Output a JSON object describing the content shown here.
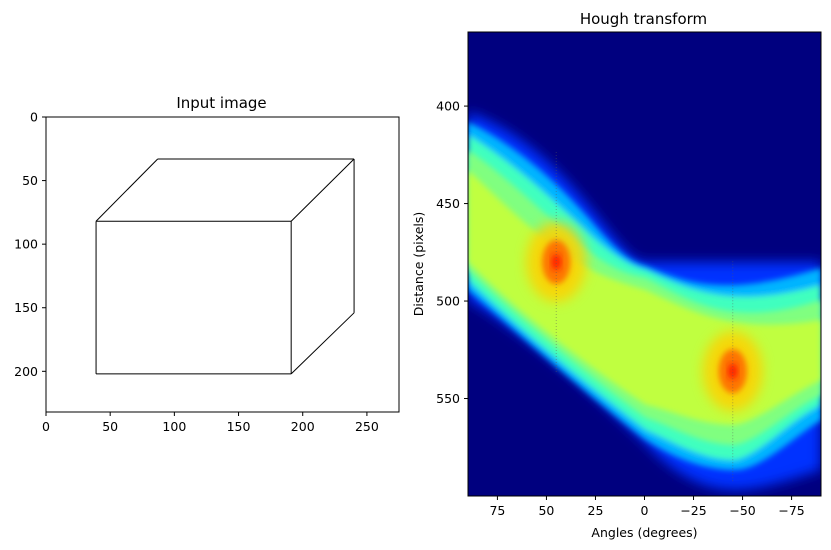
{
  "chart_data": [
    {
      "type": "image",
      "title": "Input image",
      "xlim": [
        0,
        275
      ],
      "ylim": [
        232,
        0
      ],
      "xticks": [
        "0",
        "50",
        "100",
        "150",
        "200",
        "250"
      ],
      "yticks": [
        "0",
        "50",
        "100",
        "150",
        "200"
      ],
      "cube_vertices": {
        "front_top_left": [
          39,
          82
        ],
        "front_top_right": [
          191,
          82
        ],
        "front_bottom_right": [
          191,
          202
        ],
        "front_bottom_left": [
          39,
          202
        ],
        "back_top_left": [
          87,
          33
        ],
        "back_top_right": [
          240,
          33
        ],
        "back_bottom_right": [
          240,
          154
        ]
      },
      "line_color": "#000000"
    },
    {
      "type": "heatmap",
      "title": "Hough transform",
      "xlabel": "Angles (degrees)",
      "ylabel": "Distance (pixels)",
      "xlim": [
        90,
        -90
      ],
      "ylim": [
        600,
        362
      ],
      "xticks": [
        "75",
        "50",
        "25",
        "0",
        "−25",
        "−50",
        "−75"
      ],
      "yticks": [
        "400",
        "450",
        "500",
        "550"
      ],
      "colormap": "jet",
      "background_color": "#00007f",
      "peaks": [
        {
          "angle": 45,
          "distance": 480
        },
        {
          "angle": -45,
          "distance": 536
        }
      ],
      "curve_crossings": [
        {
          "angle": 90,
          "distance": 404
        },
        {
          "angle": 90,
          "distance": 478
        },
        {
          "angle": 0,
          "distance": 478
        },
        {
          "angle": 0,
          "distance": 568
        },
        {
          "angle": -90,
          "distance": 478
        },
        {
          "angle": -90,
          "distance": 556
        }
      ]
    }
  ]
}
